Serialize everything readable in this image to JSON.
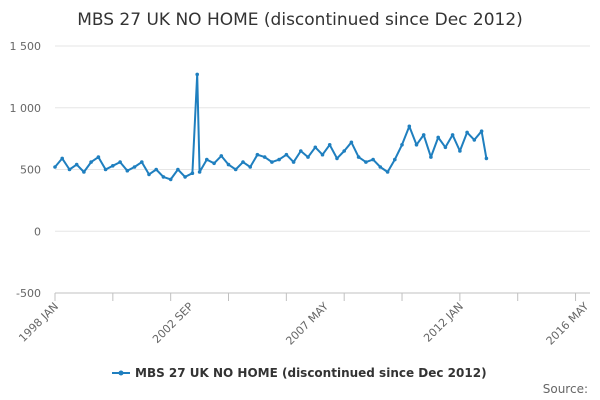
{
  "chart_data": {
    "type": "line",
    "title": "MBS 27 UK NO HOME (discontinued since Dec 2012)",
    "xlabel": "",
    "ylabel": "",
    "x_tick_labels": [
      "1998 JAN",
      "2002 SEP",
      "2007 MAY",
      "2012 JAN",
      "2016 MAY"
    ],
    "x_ticks": [
      1998.0,
      2002.667,
      2007.333,
      2012.0,
      2016.333
    ],
    "xlim": [
      1998.0,
      2016.5
    ],
    "y_tick_labels": [
      "1 500",
      "1 000",
      "500",
      "0",
      "-500"
    ],
    "y_ticks": [
      1500,
      1000,
      500,
      0,
      -500
    ],
    "ylim": [
      -500,
      1500
    ],
    "grid": true,
    "legend": "bottom-center",
    "series": [
      {
        "name": "MBS 27 UK NO HOME (discontinued since Dec 2012)",
        "color": "#1f7fbf",
        "x": [
          1998.0,
          1998.25,
          1998.5,
          1998.75,
          1999.0,
          1999.25,
          1999.5,
          1999.75,
          2000.0,
          2000.25,
          2000.5,
          2000.75,
          2001.0,
          2001.25,
          2001.5,
          2001.75,
          2002.0,
          2002.25,
          2002.5,
          2002.75,
          2002.917,
          2003.0,
          2003.25,
          2003.5,
          2003.75,
          2004.0,
          2004.25,
          2004.5,
          2004.75,
          2005.0,
          2005.25,
          2005.5,
          2005.75,
          2006.0,
          2006.25,
          2006.5,
          2006.75,
          2007.0,
          2007.25,
          2007.5,
          2007.75,
          2008.0,
          2008.25,
          2008.5,
          2008.75,
          2009.0,
          2009.25,
          2009.5,
          2009.75,
          2010.0,
          2010.25,
          2010.5,
          2010.75,
          2011.0,
          2011.25,
          2011.5,
          2011.75,
          2012.0,
          2012.25,
          2012.5,
          2012.75,
          2012.917
        ],
        "values": [
          520,
          590,
          500,
          540,
          480,
          560,
          600,
          500,
          530,
          560,
          490,
          520,
          560,
          460,
          500,
          440,
          420,
          500,
          440,
          470,
          1270,
          480,
          580,
          550,
          610,
          540,
          500,
          560,
          520,
          620,
          600,
          560,
          580,
          620,
          560,
          650,
          600,
          680,
          620,
          700,
          590,
          650,
          720,
          600,
          560,
          580,
          520,
          480,
          580,
          700,
          850,
          700,
          780,
          600,
          760,
          680,
          780,
          650,
          800,
          740,
          810,
          590
        ]
      }
    ]
  },
  "legend": {
    "label": "MBS 27 UK NO HOME (discontinued since Dec 2012)"
  },
  "footer": {
    "source_label": "Source:"
  }
}
